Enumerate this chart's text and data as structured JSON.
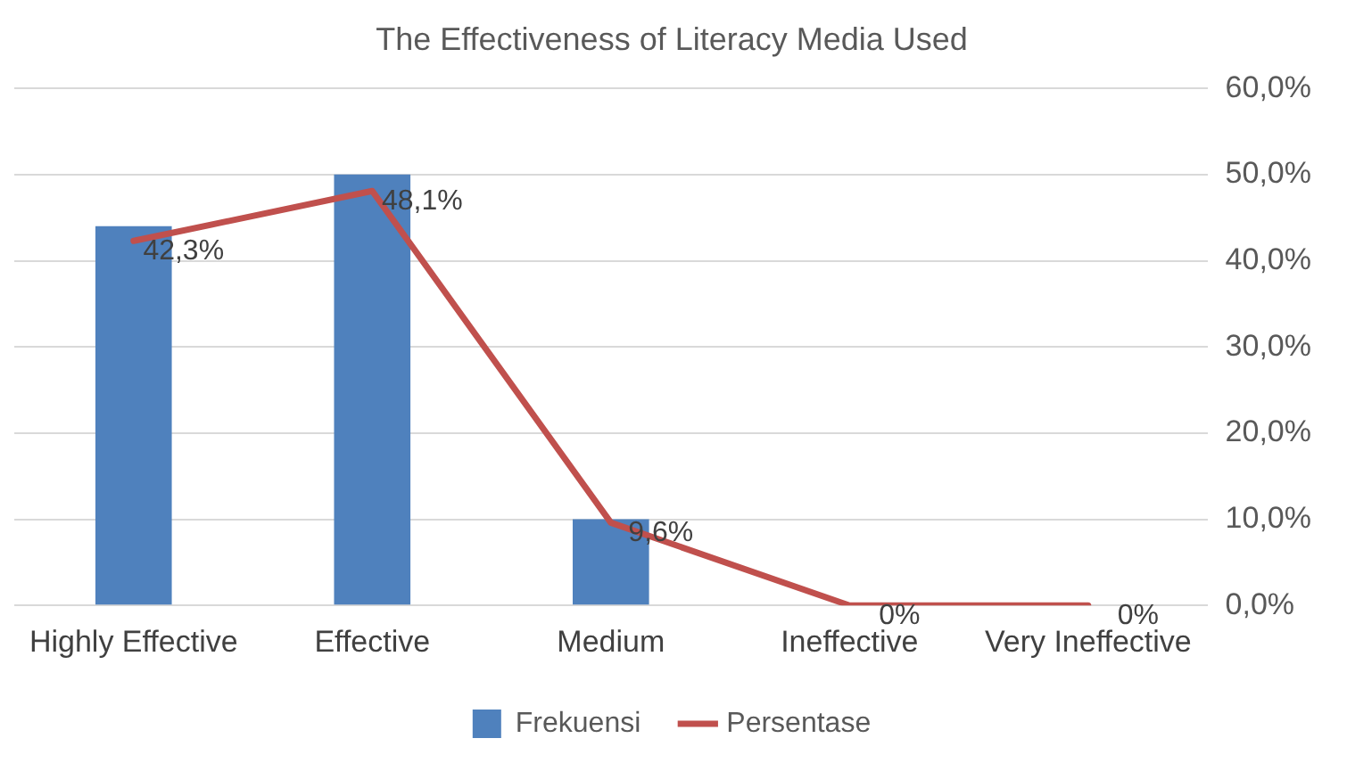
{
  "chart_data": {
    "type": "bar",
    "title": "The Effectiveness of Literacy Media Used",
    "categories": [
      "Highly Effective",
      "Effective",
      "Medium",
      "Ineffective",
      "Very Ineffective"
    ],
    "series": [
      {
        "name": "Frekuensi",
        "color": "#4f81bd",
        "values": [
          44,
          50,
          10,
          0,
          0
        ]
      },
      {
        "name": "Persentase",
        "type": "line",
        "color": "#c0504d",
        "values": [
          42.3,
          48.1,
          9.6,
          0,
          0
        ],
        "value_labels": [
          "42,3%",
          "48,1%",
          "9,6%",
          "0%",
          "0%"
        ]
      }
    ],
    "ylim": [
      0,
      60
    ],
    "yticks": [
      {
        "value": 0,
        "label": "0,0%"
      },
      {
        "value": 10,
        "label": "10,0%"
      },
      {
        "value": 20,
        "label": "20,0%"
      },
      {
        "value": 30,
        "label": "30,0%"
      },
      {
        "value": 40,
        "label": "40,0%"
      },
      {
        "value": 50,
        "label": "50,0%"
      },
      {
        "value": 60,
        "label": "60,0%"
      }
    ],
    "grid": "y",
    "legend": "bottom",
    "marker": "none",
    "line_style": "solid"
  }
}
